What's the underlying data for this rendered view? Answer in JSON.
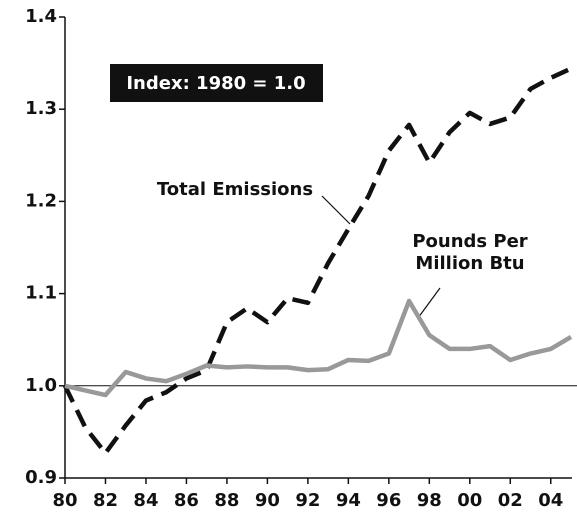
{
  "chart_data": {
    "type": "line",
    "annotations": [
      "Index: 1980 = 1.0"
    ],
    "x": [
      1980,
      1981,
      1982,
      1983,
      1984,
      1985,
      1986,
      1987,
      1988,
      1989,
      1990,
      1991,
      1992,
      1993,
      1994,
      1995,
      1996,
      1997,
      1998,
      1999,
      2000,
      2001,
      2002,
      2003,
      2004,
      2005
    ],
    "series": [
      {
        "name": "Total Emissions",
        "color": "#111111",
        "dashed": true,
        "values": [
          1.0,
          0.955,
          0.927,
          0.957,
          0.984,
          0.993,
          1.008,
          1.017,
          1.069,
          1.084,
          1.069,
          1.095,
          1.09,
          1.133,
          1.17,
          1.206,
          1.255,
          1.283,
          1.242,
          1.275,
          1.296,
          1.284,
          1.291,
          1.322,
          1.334,
          1.344
        ]
      },
      {
        "name": "Pounds Per Million Btu",
        "color": "#999999",
        "dashed": false,
        "values": [
          1.0,
          0.995,
          0.99,
          1.015,
          1.008,
          1.005,
          1.013,
          1.022,
          1.02,
          1.021,
          1.02,
          1.02,
          1.017,
          1.018,
          1.028,
          1.027,
          1.035,
          1.092,
          1.055,
          1.04,
          1.04,
          1.043,
          1.028,
          1.035,
          1.04,
          1.053
        ]
      }
    ],
    "xlim": [
      1980,
      2005
    ],
    "xticks": [
      {
        "value": 1980,
        "label": "80"
      },
      {
        "value": 1982,
        "label": "82"
      },
      {
        "value": 1984,
        "label": "84"
      },
      {
        "value": 1986,
        "label": "86"
      },
      {
        "value": 1988,
        "label": "88"
      },
      {
        "value": 1990,
        "label": "90"
      },
      {
        "value": 1992,
        "label": "92"
      },
      {
        "value": 1994,
        "label": "94"
      },
      {
        "value": 1996,
        "label": "96"
      },
      {
        "value": 1998,
        "label": "98"
      },
      {
        "value": 2000,
        "label": "00"
      },
      {
        "value": 2002,
        "label": "02"
      },
      {
        "value": 2004,
        "label": "04"
      }
    ],
    "ylim": [
      0.9,
      1.4
    ],
    "yticks": [
      0.9,
      {
        "value": 1,
        "label": "1.0"
      },
      1.1,
      1.2,
      1.3,
      1.4
    ]
  }
}
